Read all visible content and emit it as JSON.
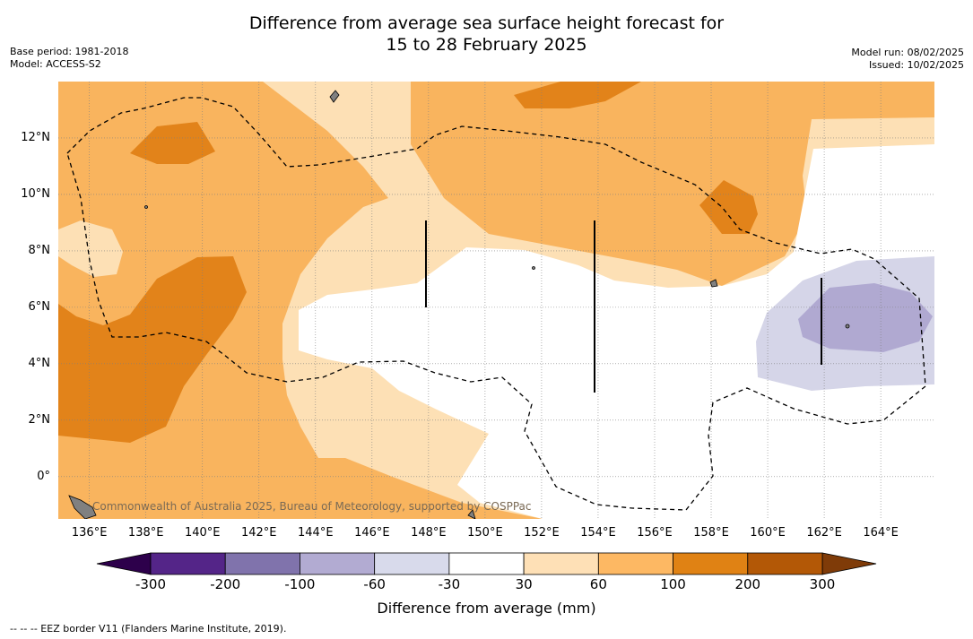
{
  "header": {
    "title_line1": "Difference from average sea surface height forecast for",
    "title_line2": "15 to 28 February 2025",
    "base_period": "Base period: 1981-2018",
    "model": "Model: ACCESS-S2",
    "model_run": "Model run: 08/02/2025",
    "issued": "Issued: 10/02/2025"
  },
  "map": {
    "lat_range": [
      -1.5,
      14
    ],
    "lon_range": [
      134.9,
      165.9
    ],
    "lat_ticks": [
      {
        "value": 12,
        "label": "12°N"
      },
      {
        "value": 10,
        "label": "10°N"
      },
      {
        "value": 8,
        "label": "8°N"
      },
      {
        "value": 6,
        "label": "6°N"
      },
      {
        "value": 4,
        "label": "4°N"
      },
      {
        "value": 2,
        "label": "2°N"
      },
      {
        "value": 0,
        "label": "0°"
      }
    ],
    "lon_ticks": [
      {
        "value": 136,
        "label": "136°E"
      },
      {
        "value": 138,
        "label": "138°E"
      },
      {
        "value": 140,
        "label": "140°E"
      },
      {
        "value": 142,
        "label": "142°E"
      },
      {
        "value": 144,
        "label": "144°E"
      },
      {
        "value": 146,
        "label": "146°E"
      },
      {
        "value": 148,
        "label": "148°E"
      },
      {
        "value": 150,
        "label": "150°E"
      },
      {
        "value": 152,
        "label": "152°E"
      },
      {
        "value": 154,
        "label": "154°E"
      },
      {
        "value": 156,
        "label": "156°E"
      },
      {
        "value": 158,
        "label": "158°E"
      },
      {
        "value": 160,
        "label": "160°E"
      },
      {
        "value": 162,
        "label": "162°E"
      },
      {
        "value": 164,
        "label": "164°E"
      }
    ],
    "colors": {
      "c200_300": "#e2831a",
      "c100_200": "#f9b45e",
      "c60_100": "#f9b45e",
      "c30_60": "#fde0b5",
      "neutral": "#ffffff",
      "cm60_m30": "#d5d5e8",
      "cm100_m60": "#b0a9d1",
      "land": "#808080",
      "grid": "#7f7f7f",
      "eez": "#000000"
    },
    "watermark": "Commonwealth of Australia 2025, Bureau of Meteorology, supported by COSPPac"
  },
  "colorbar": {
    "title": "Difference from average (mm)",
    "bounds": [
      -300,
      -200,
      -100,
      -60,
      -30,
      30,
      60,
      100,
      200,
      300
    ],
    "labels": [
      "-300",
      "-200",
      "-100",
      "-60",
      "-30",
      "30",
      "60",
      "100",
      "200",
      "300"
    ],
    "colors": [
      "#542588",
      "#8073ac",
      "#b2abd2",
      "#d8daeb",
      "#ffffff",
      "#fee0b6",
      "#fdb863",
      "#e08214",
      "#b35806"
    ],
    "extend_min_color": "#2d004b",
    "extend_max_color": "#7f3b08"
  },
  "footnote": "-- -- -- EEZ border V11 (Flanders Marine Institute, 2019)."
}
